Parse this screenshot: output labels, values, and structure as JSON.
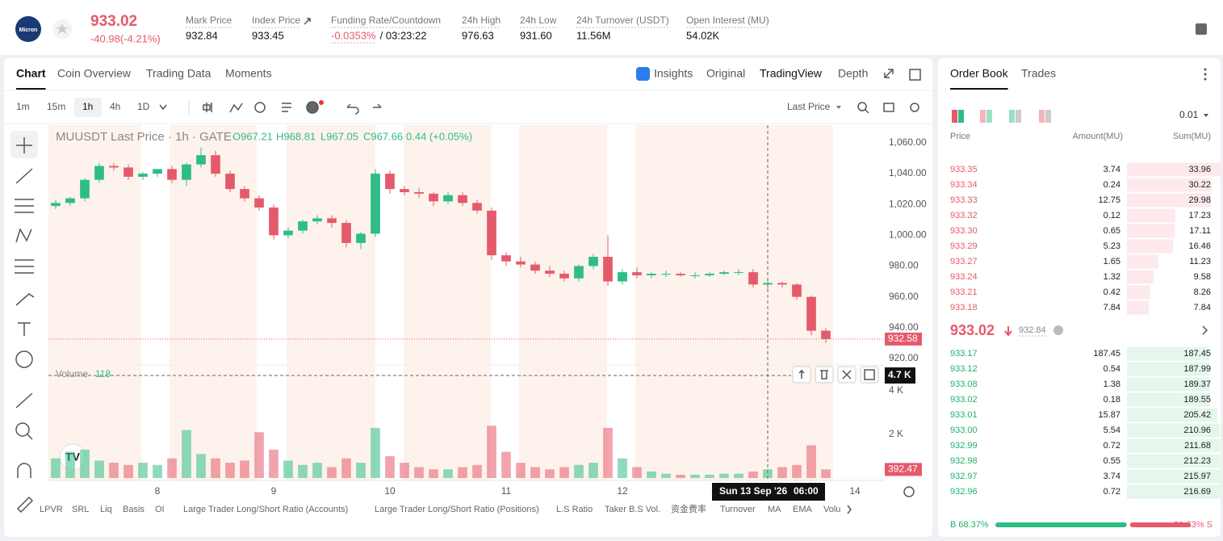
{
  "header": {
    "logo": "Micron",
    "price": "933.02",
    "change": "-40.98(-4.21%)",
    "stats": [
      {
        "label": "Mark Price",
        "value": "932.84"
      },
      {
        "label": "Index Price",
        "value": "933.45"
      },
      {
        "label": "Funding Rate/Countdown",
        "value": "-0.0353%",
        "extra": "/ 03:23:22"
      },
      {
        "label": "24h High",
        "value": "976.63"
      },
      {
        "label": "24h Low",
        "value": "931.60"
      },
      {
        "label": "24h Turnover (USDT)",
        "value": "11.56M"
      },
      {
        "label": "Open Interest (MU)",
        "value": "54.02K"
      }
    ]
  },
  "tabs": [
    "Chart",
    "Coin Overview",
    "Trading Data",
    "Moments"
  ],
  "views": [
    "Insights",
    "Original",
    "TradingView",
    "Depth"
  ],
  "intervals": [
    "1m",
    "15m",
    "1h",
    "4h",
    "1D"
  ],
  "price_source": "Last Price",
  "indicators": [
    "LPVR",
    "SRL",
    "Liq",
    "Basis",
    "OI",
    "Large Trader Long/Short Ratio (Accounts)",
    "Large Trader Long/Short Ratio (Positions)",
    "L.S Ratio",
    "Taker B.S Vol.",
    "资金费率",
    "Turnover",
    "MA",
    "EMA",
    "Volu"
  ],
  "chart_data": {
    "type": "candlestick",
    "legend": {
      "symbol": "MUUSDT Last Price · 1h · GATE",
      "items": [
        "O967.21",
        "H968.81",
        "L967.05",
        "C967.66",
        "0.44 (+0.05%)"
      ]
    },
    "volume_title": "Volume",
    "volume_value": "118",
    "up_color": "#2ebd85",
    "down_color": "#e55a6b",
    "x": [
      7.125,
      7.25,
      7.375,
      7.5,
      7.625,
      7.75,
      7.875,
      8.0,
      8.125,
      8.25,
      8.375,
      8.5,
      8.625,
      8.75,
      8.875,
      9.0,
      9.125,
      9.25,
      9.375,
      9.5,
      9.625,
      9.75,
      9.875,
      10.0,
      10.125,
      10.25,
      10.375,
      10.5,
      10.625,
      10.75,
      10.875,
      11.0,
      11.125,
      11.25,
      11.375,
      11.5,
      11.625,
      11.75,
      11.875,
      12.0,
      12.125,
      12.25,
      12.375,
      12.5,
      12.625,
      12.75,
      12.875,
      13.0,
      13.125,
      13.25,
      13.375,
      13.5,
      13.625,
      13.75
    ],
    "open": [
      1019,
      1021,
      1024,
      1036,
      1045,
      1044,
      1038,
      1040,
      1043,
      1036,
      1046,
      1052,
      1040,
      1030,
      1024,
      1018,
      1000,
      1003,
      1009,
      1011,
      1008,
      995,
      1001,
      1040,
      1030,
      1028,
      1027,
      1022,
      1026,
      1021,
      1016,
      987,
      983,
      981,
      977,
      975,
      972,
      980,
      986,
      970,
      976,
      974,
      975,
      975,
      974,
      974,
      975,
      976,
      976,
      968,
      969,
      968,
      960,
      938
    ],
    "high": [
      1023,
      1025,
      1037,
      1047,
      1047,
      1046,
      1041,
      1043,
      1045,
      1047,
      1057,
      1055,
      1042,
      1032,
      1026,
      1020,
      1005,
      1010,
      1013,
      1013,
      1010,
      1002,
      1043,
      1042,
      1032,
      1031,
      1028,
      1028,
      1028,
      1023,
      1018,
      989,
      986,
      983,
      980,
      977,
      981,
      988,
      1000,
      978,
      979,
      976,
      977,
      976,
      976,
      976,
      977,
      978,
      978,
      970,
      970,
      969,
      961,
      940
    ],
    "low": [
      1017,
      1019,
      1022,
      1034,
      1042,
      1036,
      1036,
      1038,
      1034,
      1032,
      1044,
      1038,
      1028,
      1022,
      1016,
      997,
      998,
      1001,
      1007,
      1005,
      992,
      991,
      999,
      1027,
      1026,
      1024,
      1019,
      1020,
      1019,
      1014,
      984,
      980,
      979,
      975,
      973,
      970,
      970,
      978,
      967,
      968,
      972,
      972,
      973,
      973,
      972,
      973,
      974,
      974,
      966,
      965,
      966,
      958,
      935,
      930
    ],
    "close": [
      1021,
      1024,
      1036,
      1045,
      1044,
      1038,
      1040,
      1043,
      1036,
      1046,
      1052,
      1040,
      1030,
      1024,
      1018,
      1000,
      1003,
      1009,
      1011,
      1008,
      995,
      1001,
      1040,
      1030,
      1028,
      1027,
      1022,
      1026,
      1021,
      1016,
      987,
      983,
      981,
      977,
      975,
      972,
      980,
      986,
      970,
      976,
      974,
      975,
      975,
      974,
      974,
      975,
      976,
      976,
      968,
      969,
      968,
      960,
      938,
      932.58
    ],
    "volume": [
      900,
      1200,
      1300,
      800,
      700,
      600,
      700,
      600,
      900,
      2200,
      1100,
      900,
      700,
      800,
      2100,
      1300,
      800,
      600,
      700,
      500,
      900,
      700,
      2300,
      1000,
      700,
      500,
      400,
      400,
      500,
      600,
      2400,
      1200,
      700,
      500,
      400,
      500,
      600,
      700,
      2300,
      900,
      500,
      300,
      200,
      150,
      150,
      150,
      200,
      200,
      300,
      400,
      500,
      600,
      1500,
      392.47
    ],
    "xlim": [
      7.0625,
      14.25
    ],
    "xticks": [
      8,
      9,
      10,
      11,
      12,
      14
    ],
    "ylim": [
      916.8,
      1071.5
    ],
    "yticks": [
      {
        "value": 920,
        "label": "920.00"
      },
      {
        "value": 940,
        "label": "940.00"
      },
      {
        "value": 960,
        "label": "960.00"
      },
      {
        "value": 980,
        "label": "980.00"
      },
      {
        "value": 1000,
        "label": "1,000.00"
      },
      {
        "value": 1020,
        "label": "1,020.00"
      },
      {
        "value": 1040,
        "label": "1,040.00"
      },
      {
        "value": 1060,
        "label": "1,060.00"
      }
    ],
    "volume_ylim": [
      0,
      5070
    ],
    "volume_ticks": [
      {
        "value": 2000,
        "label": "2 K"
      },
      {
        "value": 4000,
        "label": "4 K"
      }
    ],
    "crosshair": {
      "x": 13.25,
      "date": "Sun 13 Sep '26",
      "time": "06:00",
      "y": {
        "value": 4700,
        "label": "4.7 K"
      }
    }
  },
  "order_book": {
    "tabs": [
      "Order Book",
      "Trades"
    ],
    "tick_size": "0.01",
    "columns": [
      "Price",
      "Amount(MU)",
      "Sum(MU)"
    ],
    "asks": {
      "price": [
        "933.35",
        "933.34",
        "933.33",
        "933.32",
        "933.30",
        "933.29",
        "933.27",
        "933.24",
        "933.21",
        "933.18"
      ],
      "amount": [
        3.74,
        0.24,
        12.75,
        0.12,
        0.65,
        5.23,
        1.65,
        1.32,
        0.42,
        7.84
      ],
      "sum": [
        33.96,
        30.22,
        29.98,
        17.23,
        17.11,
        16.46,
        11.23,
        9.58,
        8.26,
        7.84
      ]
    },
    "mid": {
      "price": "933.02",
      "mark": "932.84"
    },
    "bids": {
      "price": [
        "933.17",
        "933.12",
        "933.08",
        "933.02",
        "933.01",
        "933.00",
        "932.99",
        "932.98",
        "932.97",
        "932.96"
      ],
      "amount": [
        187.45,
        0.54,
        1.38,
        0.18,
        15.87,
        5.54,
        0.72,
        0.55,
        3.74,
        0.72
      ],
      "sum": [
        187.45,
        187.99,
        189.37,
        189.55,
        205.42,
        210.96,
        211.68,
        212.23,
        215.97,
        216.69
      ]
    },
    "ratio": {
      "values": [
        68.37,
        31.63
      ],
      "value_labels": [
        "B 68.37%",
        "31.63% S"
      ]
    }
  }
}
